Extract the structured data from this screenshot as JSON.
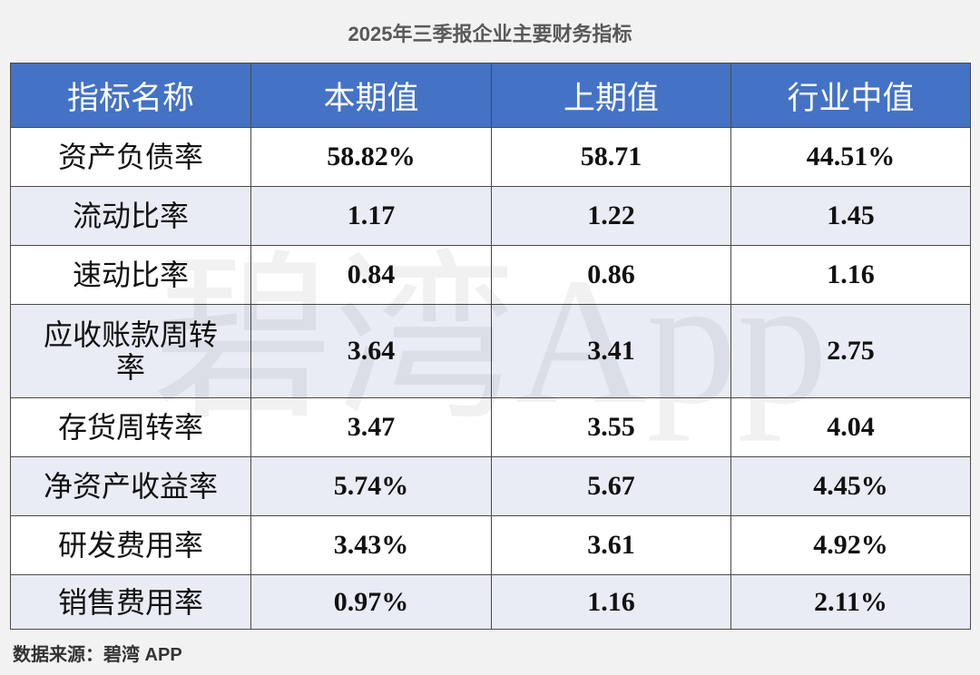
{
  "chart_data": {
    "type": "table",
    "title": "2025年三季报企业主要财务指标",
    "columns": [
      "指标名称",
      "本期值",
      "上期值",
      "行业中值"
    ],
    "rows": [
      [
        "资产负债率",
        "58.82%",
        "58.71",
        "44.51%"
      ],
      [
        "流动比率",
        "1.17",
        "1.22",
        "1.45"
      ],
      [
        "速动比率",
        "0.84",
        "0.86",
        "1.16"
      ],
      [
        "应收账款周转率",
        "3.64",
        "3.41",
        "2.75"
      ],
      [
        "存货周转率",
        "3.47",
        "3.55",
        "4.04"
      ],
      [
        "净资产收益率",
        "5.74%",
        "5.67",
        "4.45%"
      ],
      [
        "研发费用率",
        "3.43%",
        "3.61",
        "4.92%"
      ],
      [
        "销售费用率",
        "0.97%",
        "1.16",
        "2.11%"
      ]
    ]
  },
  "source": "数据来源：碧湾 APP",
  "watermark": "碧湾App",
  "colors": {
    "header_background": "#4472c4",
    "header_text": "#ffffff",
    "row_alt_background": "#e9ebf5",
    "page_background": "#f2f2f2"
  }
}
